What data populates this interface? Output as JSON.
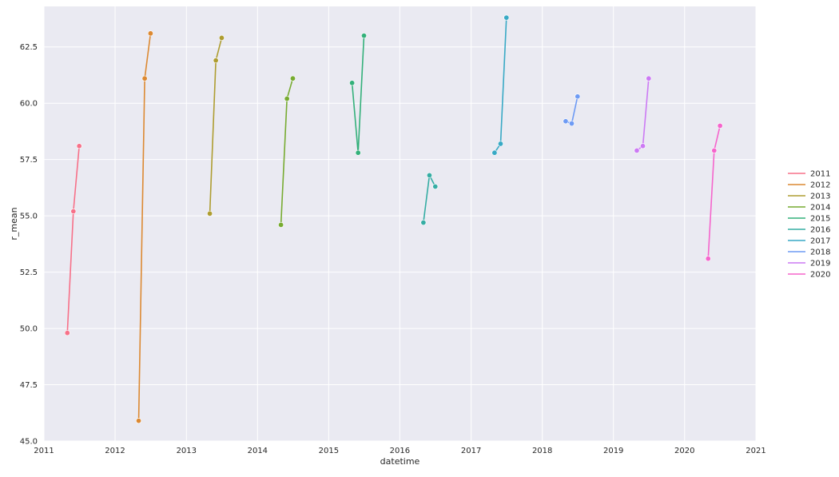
{
  "chart_data": {
    "type": "line",
    "xlabel": "datetime",
    "ylabel": "r_mean",
    "xlim": [
      "2011-01-01",
      "2021-01-01"
    ],
    "ylim": [
      45.0,
      64.3
    ],
    "x_ticks": [
      "2011",
      "2012",
      "2013",
      "2014",
      "2015",
      "2016",
      "2017",
      "2018",
      "2019",
      "2020",
      "2021"
    ],
    "y_ticks": [
      "45.0",
      "47.5",
      "50.0",
      "52.5",
      "55.0",
      "57.5",
      "60.0",
      "62.5"
    ],
    "grid": true,
    "legend_position": "right",
    "markers": true,
    "series": [
      {
        "name": "2011",
        "color": "#f77189",
        "points": [
          {
            "x": "2011-05-01",
            "y": 49.8
          },
          {
            "x": "2011-06-01",
            "y": 55.2
          },
          {
            "x": "2011-07-01",
            "y": 58.1
          }
        ]
      },
      {
        "name": "2012",
        "color": "#dc8932",
        "points": [
          {
            "x": "2012-05-01",
            "y": 45.9
          },
          {
            "x": "2012-06-01",
            "y": 61.1
          },
          {
            "x": "2012-07-01",
            "y": 63.1
          }
        ]
      },
      {
        "name": "2013",
        "color": "#ae9d31",
        "points": [
          {
            "x": "2013-05-01",
            "y": 55.1
          },
          {
            "x": "2013-06-01",
            "y": 61.9
          },
          {
            "x": "2013-07-01",
            "y": 62.9
          }
        ]
      },
      {
        "name": "2014",
        "color": "#77ab31",
        "points": [
          {
            "x": "2014-05-01",
            "y": 54.6
          },
          {
            "x": "2014-06-01",
            "y": 60.2
          },
          {
            "x": "2014-07-01",
            "y": 61.1
          }
        ]
      },
      {
        "name": "2015",
        "color": "#33b07a",
        "points": [
          {
            "x": "2015-05-01",
            "y": 60.9
          },
          {
            "x": "2015-06-01",
            "y": 57.8
          },
          {
            "x": "2015-07-01",
            "y": 63.0
          }
        ]
      },
      {
        "name": "2016",
        "color": "#36ada4",
        "points": [
          {
            "x": "2016-05-01",
            "y": 54.7
          },
          {
            "x": "2016-06-01",
            "y": 56.8
          },
          {
            "x": "2016-07-01",
            "y": 56.3
          }
        ]
      },
      {
        "name": "2017",
        "color": "#38a9c5",
        "points": [
          {
            "x": "2017-05-01",
            "y": 57.8
          },
          {
            "x": "2017-06-01",
            "y": 58.2
          },
          {
            "x": "2017-07-01",
            "y": 63.8
          }
        ]
      },
      {
        "name": "2018",
        "color": "#6e9bf4",
        "points": [
          {
            "x": "2018-05-01",
            "y": 59.2
          },
          {
            "x": "2018-06-01",
            "y": 59.1
          },
          {
            "x": "2018-07-01",
            "y": 60.3
          }
        ]
      },
      {
        "name": "2019",
        "color": "#cc7af4",
        "points": [
          {
            "x": "2019-05-01",
            "y": 57.9
          },
          {
            "x": "2019-06-01",
            "y": 58.1
          },
          {
            "x": "2019-07-01",
            "y": 61.1
          }
        ]
      },
      {
        "name": "2020",
        "color": "#f565cc",
        "points": [
          {
            "x": "2020-05-01",
            "y": 53.1
          },
          {
            "x": "2020-06-01",
            "y": 57.9
          },
          {
            "x": "2020-07-01",
            "y": 59.0
          }
        ]
      }
    ]
  }
}
